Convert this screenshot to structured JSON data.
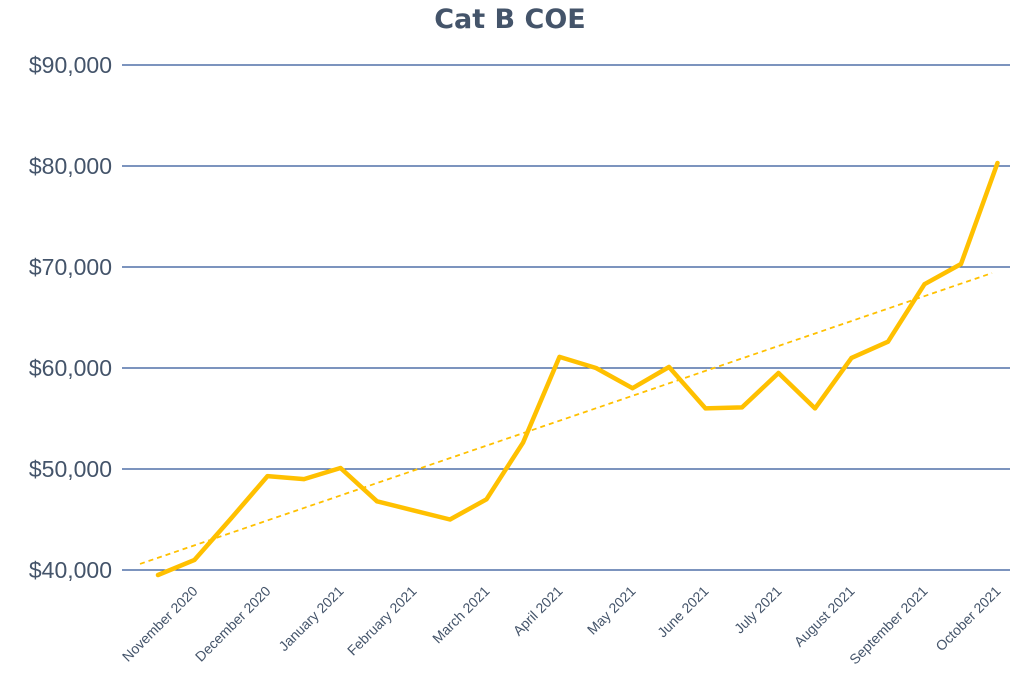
{
  "chart_data": {
    "type": "line",
    "title": "Cat B COE",
    "xlabel": "",
    "ylabel": "",
    "ylim": [
      40000,
      90000
    ],
    "yticks": [
      40000,
      50000,
      60000,
      70000,
      80000,
      90000
    ],
    "ytick_labels": [
      "$40,000",
      "$50,000",
      "$60,000",
      "$70,000",
      "$80,000",
      "$90,000"
    ],
    "xtick_labels": [
      "November 2020",
      "December 2020",
      "January 2021",
      "February 2021",
      "March 2021",
      "April 2021",
      "May 2021",
      "June 2021",
      "July 2021",
      "August 2021",
      "September 2021",
      "October 2021"
    ],
    "grid": true,
    "series": [
      {
        "name": "Cat B COE",
        "color": "#ffc000",
        "values": [
          39500,
          41000,
          45100,
          49300,
          49000,
          50100,
          46800,
          45900,
          45000,
          47000,
          52600,
          61100,
          60000,
          58000,
          60100,
          56000,
          56100,
          59500,
          56000,
          61000,
          62600,
          68300,
          70300,
          80300
        ]
      }
    ],
    "trendline": {
      "type": "linear",
      "style": "dashed",
      "color": "#ffc000",
      "start": 40600,
      "end": 69400
    }
  }
}
